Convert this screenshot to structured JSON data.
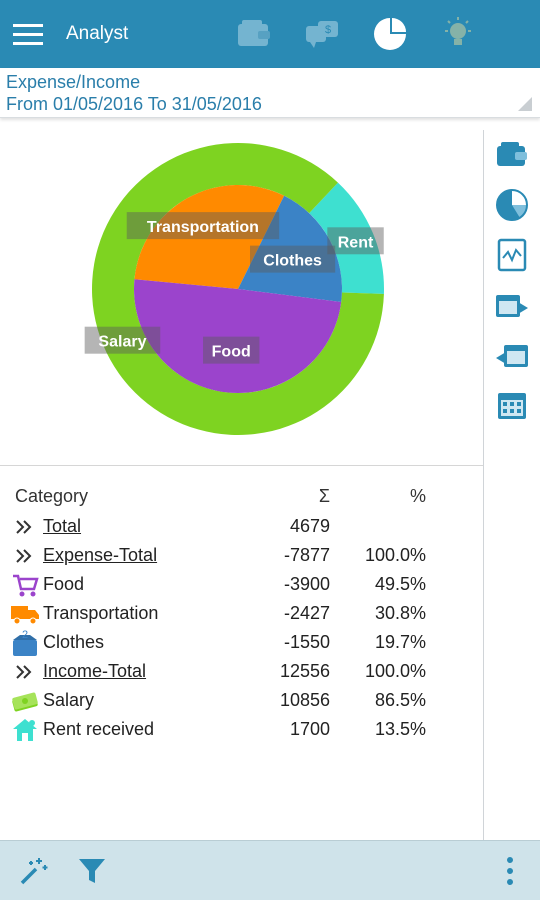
{
  "app": {
    "title": "Analyst"
  },
  "colors": {
    "appbar": "#2a8ab4",
    "accent_text": "#2a7eaa",
    "salary": "#7ed321",
    "rent": "#3ee0d0",
    "transportation": "#ff8a00",
    "clothes": "#3b83c6",
    "food": "#9b44cc"
  },
  "tabs": [
    {
      "icon": "wallet-icon",
      "active": false
    },
    {
      "icon": "transfer-icon",
      "active": false
    },
    {
      "icon": "pie-chart-icon",
      "active": true
    },
    {
      "icon": "lightbulb-icon",
      "active": false
    }
  ],
  "report": {
    "title": "Expense/Income",
    "range": "From 01/05/2016 To 31/05/2016"
  },
  "chart_data": {
    "type": "pie",
    "title": "",
    "outer_ring": [
      {
        "label": "Salary",
        "value": 10856,
        "color": "#7ed321"
      },
      {
        "label": "Rent",
        "value": 1700,
        "color": "#3ee0d0"
      }
    ],
    "inner_pie": [
      {
        "label": "Transportation",
        "value": 2427,
        "color": "#ff8a00"
      },
      {
        "label": "Clothes",
        "value": 1550,
        "color": "#3b83c6"
      },
      {
        "label": "Food",
        "value": 3900,
        "color": "#9b44cc"
      }
    ]
  },
  "table": {
    "headers": {
      "category": "Category",
      "sum": "Σ",
      "pct": "%"
    },
    "rows": [
      {
        "icon": "double-chevron-icon",
        "category": "Total",
        "sum": "4679",
        "pct": "",
        "link": true
      },
      {
        "icon": "double-chevron-icon",
        "category": "Expense-Total",
        "sum": "-7877",
        "pct": "100.0%",
        "link": true
      },
      {
        "icon": "shopping-cart-icon",
        "category": "Food",
        "sum": "-3900",
        "pct": "49.5%",
        "link": false
      },
      {
        "icon": "truck-icon",
        "category": "Transportation",
        "sum": "-2427",
        "pct": "30.8%",
        "link": false
      },
      {
        "icon": "clothes-box-icon",
        "category": "Clothes",
        "sum": "-1550",
        "pct": "19.7%",
        "link": false
      },
      {
        "icon": "double-chevron-icon",
        "category": "Income-Total",
        "sum": "12556",
        "pct": "100.0%",
        "link": true
      },
      {
        "icon": "money-icon",
        "category": "Salary",
        "sum": "10856",
        "pct": "86.5%",
        "link": false
      },
      {
        "icon": "house-icon",
        "category": "Rent received",
        "sum": "1700",
        "pct": "13.5%",
        "link": false
      }
    ]
  },
  "side_toolbar": [
    {
      "icon": "wallet-icon"
    },
    {
      "icon": "pie-chart-icon"
    },
    {
      "icon": "chart-detail-icon"
    },
    {
      "icon": "calendar-forward-icon"
    },
    {
      "icon": "calendar-back-icon"
    },
    {
      "icon": "calendar-icon"
    }
  ],
  "bottom_bar": [
    {
      "icon": "magic-wand-icon"
    },
    {
      "icon": "filter-icon"
    },
    {
      "icon": "more-vertical-icon"
    }
  ]
}
